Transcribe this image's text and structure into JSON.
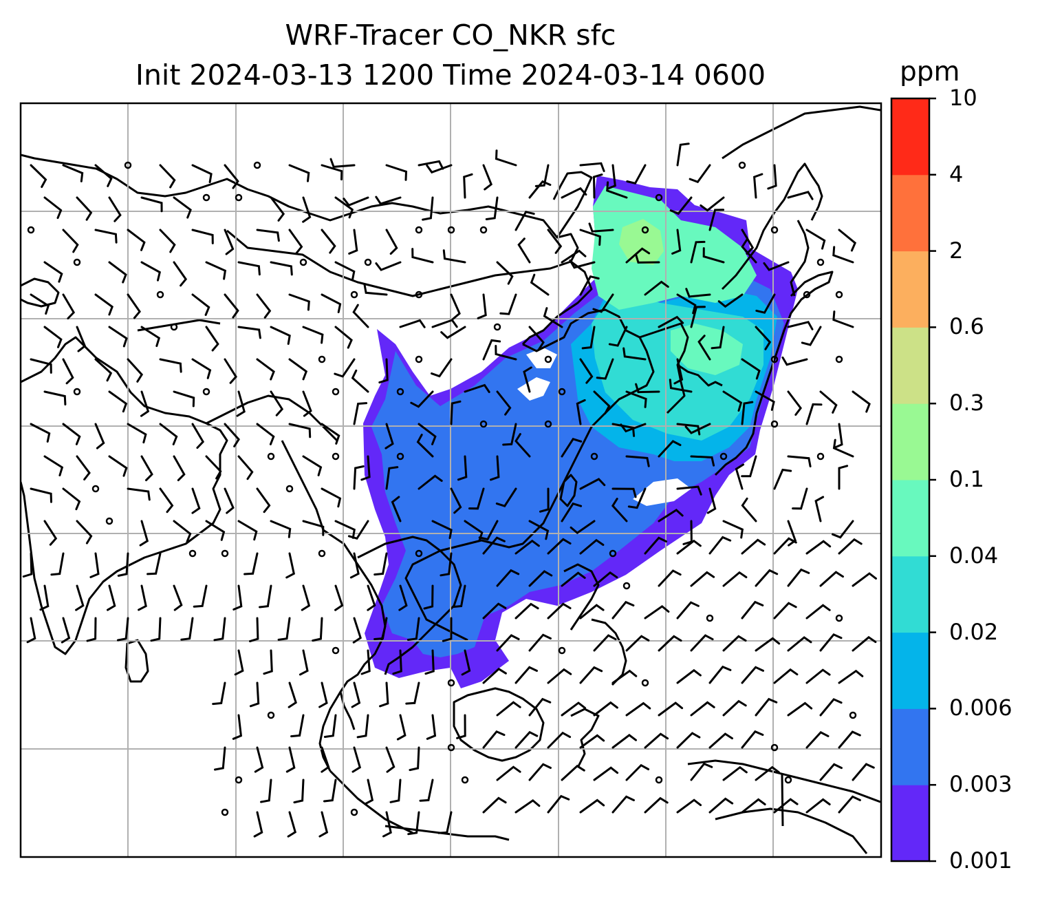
{
  "figure": {
    "title_line1": "WRF-Tracer CO_NKR sfc",
    "title_line2": "Init 2024-03-13 1200 Time 2024-03-14 0600"
  },
  "colorbar": {
    "unit": "ppm",
    "ticks": [
      "0.001",
      "0.003",
      "0.006",
      "0.02",
      "0.04",
      "0.1",
      "0.3",
      "0.6",
      "2",
      "4",
      "10"
    ],
    "colors": [
      "#6328f8",
      "#3275f0",
      "#04b4ea",
      "#31dcd4",
      "#68f9be",
      "#99f993",
      "#cce187",
      "#fcaf5e",
      "#ff713b",
      "#ff2a18"
    ]
  },
  "map": {
    "gridlines": true,
    "coastline_color": "#000000",
    "grid_color": "#b0b0b0"
  }
}
